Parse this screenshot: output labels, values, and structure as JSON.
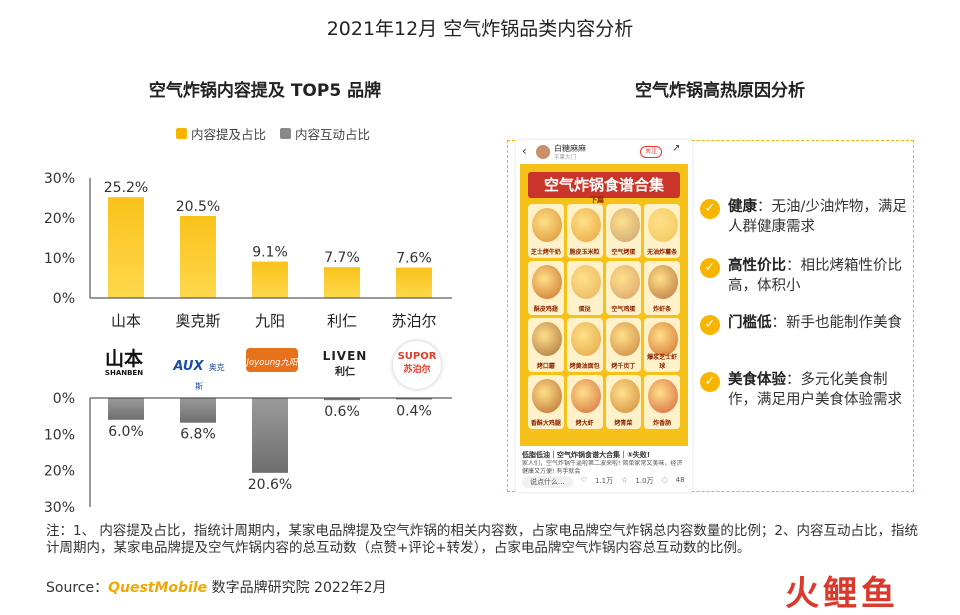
{
  "main_title": "2021年12月 空气炸锅品类内容分析",
  "left_title": "空气炸锅内容提及 TOP5 品牌",
  "right_title": "空气炸锅高热原因分析",
  "colors": {
    "mention": "#f7b500",
    "interaction": "#8a8a8a",
    "accent": "#f3b400",
    "watermark_red": "#d93a2b"
  },
  "chart_data": {
    "type": "bar",
    "categories": [
      "山本",
      "奥克斯",
      "九阳",
      "利仁",
      "苏泊尔"
    ],
    "series": [
      {
        "name": "内容提及占比",
        "values": [
          25.2,
          20.5,
          9.1,
          7.7,
          7.6
        ],
        "labels": [
          "25.2%",
          "20.5%",
          "9.1%",
          "7.7%",
          "7.6%"
        ]
      },
      {
        "name": "内容互动占比",
        "values": [
          6.0,
          6.8,
          20.6,
          0.6,
          0.4
        ],
        "labels": [
          "6.0%",
          "6.8%",
          "20.6%",
          "0.6%",
          "0.4%"
        ]
      }
    ],
    "upper_ticks": [
      "30%",
      "20%",
      "10%",
      "0%"
    ],
    "lower_ticks": [
      "0%",
      "10%",
      "20%",
      "30%"
    ],
    "ylim": [
      0,
      30
    ],
    "legend_position": "top"
  },
  "logos": [
    {
      "main": "山本",
      "sub": "SHANBEN",
      "icon": "shanben-logo"
    },
    {
      "main": "AUX",
      "sub": "奥克斯",
      "icon": "aux-logo"
    },
    {
      "main": "Joyoung九阳",
      "icon": "joyoung-logo"
    },
    {
      "main": "LIVEN",
      "sub": "利仁",
      "icon": "liven-logo"
    },
    {
      "main": "SUPOR",
      "sub": "苏泊尔",
      "icon": "supor-logo"
    }
  ],
  "phone": {
    "user": "白糖麻麻",
    "user_sub": "平果大门",
    "follow": "关注",
    "poster_title": "空气炸锅食谱合集",
    "poster_sub": "下篇",
    "recipes": [
      "芝士烤牛奶",
      "脆皮玉米粒",
      "空气烤蛋",
      "无油炸薯条",
      "酥皮鸡翅",
      "蛋挞",
      "空气鸡蛋",
      "炸虾条",
      "烤口蘑",
      "烤黄油面包",
      "烤千页丁",
      "爆浆芝士虾球",
      "香酥大鸡腿",
      "烤大虾",
      "烤青菜",
      "炸香肠"
    ],
    "caption": "低脂低油｜空气炸锅食谱大合集｜⑤失败!",
    "body": "家人们，空气炸锅牛逼啦第二波来啦! 简单家常又美味，经济健康又方便! 有手就会",
    "comment_placeholder": "说点什么...",
    "likes": "1.1万",
    "stars": "1.0万",
    "comments": "48"
  },
  "reasons": [
    {
      "keyword": "健康",
      "text": "：无油/少油炸物，满足人群健康需求"
    },
    {
      "keyword": "高性价比",
      "text": "：相比烤箱性价比高，体积小"
    },
    {
      "keyword": "门槛低",
      "text": "：新手也能制作美食"
    },
    {
      "keyword": "美食体验",
      "text": "：多元化美食制作，满足用户美食体验需求"
    }
  ],
  "note": "注：1、 内容提及占比，指统计周期内，某家电品牌提及空气炸锅的相关内容数，占家电品牌空气炸锅总内容数量的比例；2、内容互动占比，指统计周期内，某家电品牌提及空气炸锅内容的总互动数（点赞+评论+转发），占家电品牌空气炸锅内容总互动数的比例。",
  "source_prefix": "Source：",
  "source_brand": "QuestMobile",
  "source_suffix": " 数字品牌研究院 2022年2月",
  "watermark": "火鲤鱼"
}
